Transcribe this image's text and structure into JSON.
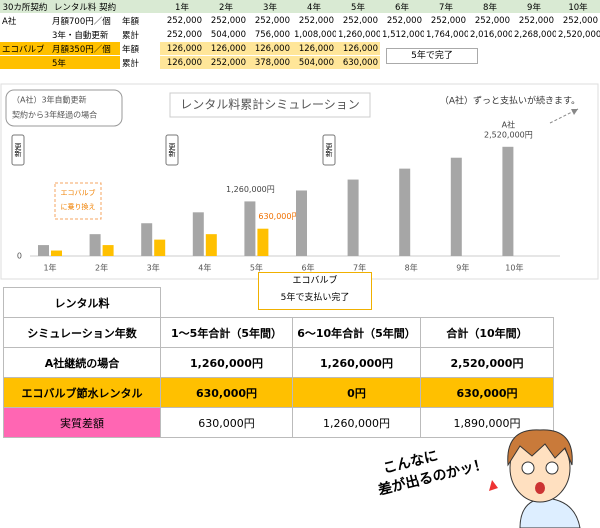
{
  "top_table": {
    "header": [
      "30カ所契約",
      "レンタル料 契約",
      null,
      "1年",
      "2年",
      "3年",
      "4年",
      "5年",
      "6年",
      "7年",
      "8年",
      "9年",
      "10年"
    ],
    "rows": [
      [
        "A社",
        "月額700円／個",
        "年額",
        "252,000",
        "252,000",
        "252,000",
        "252,000",
        "252,000",
        "252,000",
        "252,000",
        "252,000",
        "252,000",
        "252,000"
      ],
      [
        null,
        "3年・自動更新",
        "累計",
        "252,000",
        "504,000",
        "756,000",
        "1,008,000",
        "1,260,000",
        "1,512,000",
        "1,764,000",
        "2,016,000",
        "2,268,000",
        "2,520,000"
      ],
      [
        "エコバルブ",
        "月額350円／個",
        "年額",
        "126,000",
        "126,000",
        "126,000",
        "126,000",
        "126,000"
      ],
      [
        null,
        "5年",
        "累計",
        "126,000",
        "252,000",
        "378,000",
        "504,000",
        "630,000"
      ]
    ],
    "note": "5年で完了"
  },
  "chart_data": {
    "type": "bar",
    "title": "レンタル料累計シミュレーション",
    "categories": [
      "1年",
      "2年",
      "3年",
      "4年",
      "5年",
      "6年",
      "7年",
      "8年",
      "9年",
      "10年"
    ],
    "series": [
      {
        "name": "A社",
        "color": "#a6a6a6",
        "values": [
          252000,
          504000,
          756000,
          1008000,
          1260000,
          1512000,
          1764000,
          2016000,
          2268000,
          2520000
        ],
        "value_labels": [
          null,
          null,
          null,
          null,
          "1,260,000円",
          null,
          null,
          null,
          null,
          "2,520,000円"
        ]
      },
      {
        "name": "エコバルブ",
        "color": "#ffc000",
        "values": [
          126000,
          252000,
          378000,
          504000,
          630000,
          null,
          null,
          null,
          null,
          null
        ],
        "value_labels": [
          null,
          null,
          null,
          null,
          "630,000円",
          null,
          null,
          null,
          null,
          null
        ]
      }
    ],
    "ylim": [
      0,
      3000000
    ],
    "yticks": [
      0
    ],
    "note_left": [
      "（A社）3年自動更新",
      "契約から3年経過の場合"
    ],
    "note_right": "（A社）ずっと支払いが続きます。",
    "switch_note": [
      "エコバルブ",
      "に乗り換え"
    ],
    "renewal_labels": [
      "更新",
      "更新",
      "更新"
    ],
    "callout": [
      "エコバルブ",
      "5年で支払い完了"
    ]
  },
  "bottom_table": {
    "rows": [
      [
        "レンタル料"
      ],
      [
        "シミュレーション年数",
        "1～5年合計（5年間）",
        "6～10年合計（5年間）",
        "合計（10年間）"
      ],
      [
        "A社継続の場合",
        "1,260,000円",
        "1,260,000円",
        "2,520,000円"
      ],
      [
        "エコバルブ節水レンタル",
        "630,000円",
        "0円",
        "630,000円"
      ],
      [
        "実質差額",
        "630,000円",
        "1,260,000円",
        "1,890,000円"
      ]
    ]
  },
  "exclaim": [
    "こんなに",
    "差が出るのかッ！"
  ]
}
